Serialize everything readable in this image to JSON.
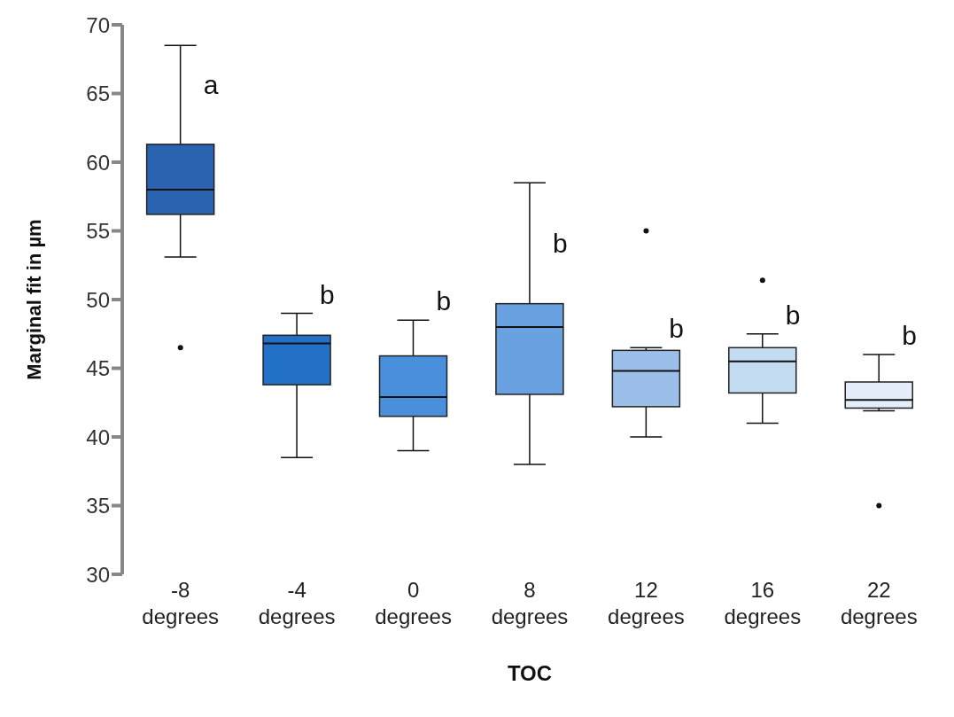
{
  "chart_data": {
    "type": "box",
    "xlabel": "TOC",
    "ylabel": "Marginal fit in µm",
    "categories": [
      "-8 degrees",
      "-4 degrees",
      "0 degrees",
      "8 degrees",
      "12 degrees",
      "16 degrees",
      "22 degrees"
    ],
    "colors": [
      "#2a64b0",
      "#2271c6",
      "#4a8fdc",
      "#6aa1e0",
      "#9bbfe8",
      "#c3dcf2",
      "#e3eefa"
    ],
    "boxes": [
      {
        "low": 53.1,
        "q1": 56.2,
        "median": 58,
        "q3": 61.3,
        "high": 68.5,
        "outliers": [
          46.5
        ]
      },
      {
        "low": 38.5,
        "q1": 43.8,
        "median": 46.8,
        "q3": 47.4,
        "high": 49
      },
      {
        "low": 39,
        "q1": 41.5,
        "median": 42.9,
        "q3": 45.9,
        "high": 48.5
      },
      {
        "low": 38,
        "q1": 43.1,
        "median": 48,
        "q3": 49.7,
        "high": 58.5
      },
      {
        "low": 40,
        "q1": 42.2,
        "median": 44.8,
        "q3": 46.3,
        "high": 46.5,
        "outliers": [
          55
        ]
      },
      {
        "low": 41,
        "q1": 43.2,
        "median": 45.5,
        "q3": 46.5,
        "high": 47.5,
        "outliers": [
          51.4
        ]
      },
      {
        "low": 41.9,
        "q1": 42.1,
        "median": 42.7,
        "q3": 44,
        "high": 46,
        "outliers": [
          35
        ]
      }
    ],
    "annotations": [
      "a",
      "b",
      "b",
      "b",
      "b",
      "b",
      "b"
    ],
    "ylim": [
      30,
      70
    ],
    "yticks": [
      30,
      35,
      40,
      45,
      50,
      55,
      60,
      65,
      70
    ]
  }
}
